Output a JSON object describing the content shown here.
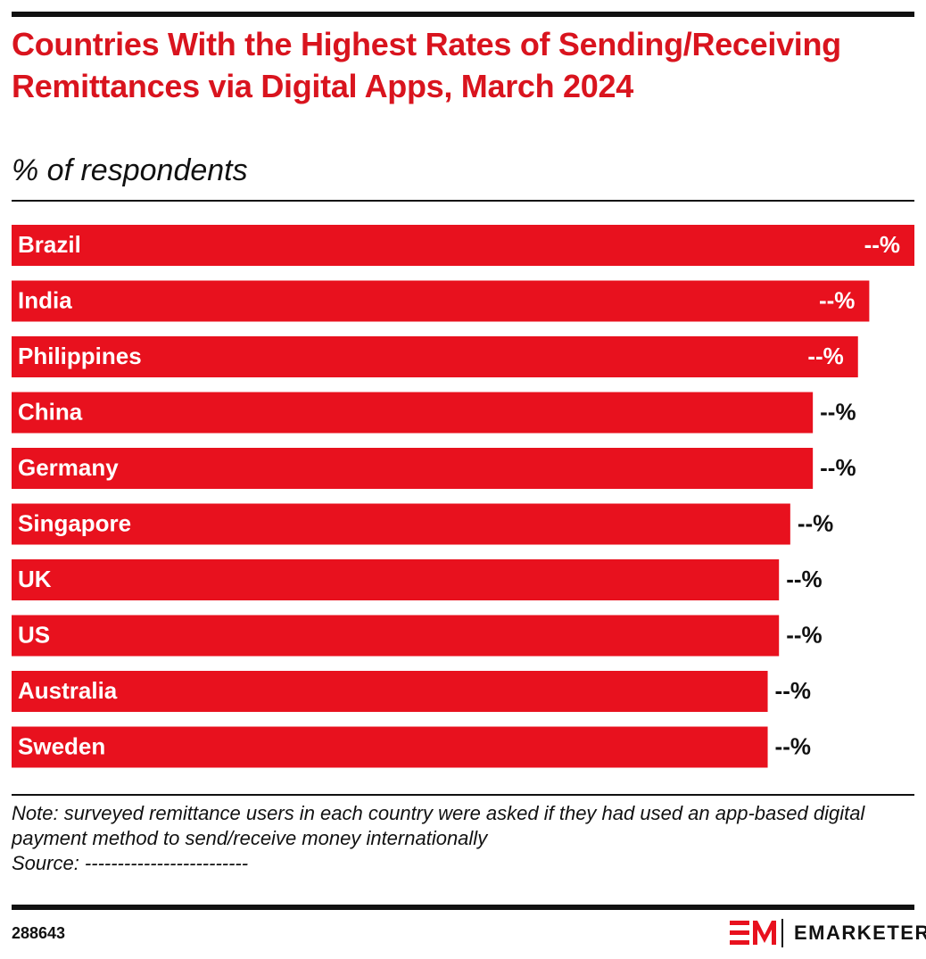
{
  "chart_data": {
    "type": "bar",
    "orientation": "horizontal",
    "title": "Countries With the Highest Rates of Sending/Receiving Remittances via Digital Apps, March 2024",
    "subtitle": "% of respondents",
    "categories": [
      "Brazil",
      "India",
      "Philippines",
      "China",
      "Germany",
      "Singapore",
      "UK",
      "US",
      "Australia",
      "Sweden"
    ],
    "values": [
      80,
      76,
      75,
      71,
      71,
      69,
      68,
      68,
      67,
      67
    ],
    "value_labels": [
      "--%",
      "--%",
      "--%",
      "--%",
      "--%",
      "--%",
      "--%",
      "--%",
      "--%",
      "--%"
    ],
    "color": "#e8111e",
    "note": "Note: surveyed remittance users in each country were asked if they had used an app-based digital payment method to send/receive money internationally",
    "source": "Source: -------------------------",
    "chart_id": "288643",
    "brand": "EMARKETER"
  }
}
